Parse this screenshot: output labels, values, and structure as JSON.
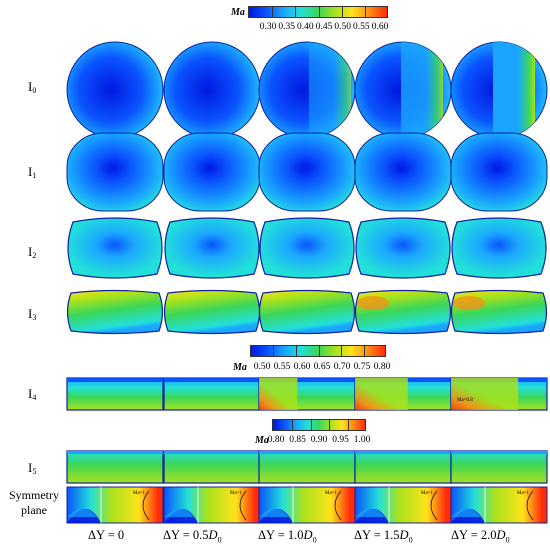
{
  "colorbars": [
    {
      "label": "Ma",
      "ticks": [
        "0.30",
        "0.35",
        "0.40",
        "0.45",
        "0.50",
        "0.55",
        "0.60"
      ]
    },
    {
      "label": "Ma",
      "ticks": [
        "0.50",
        "0.55",
        "0.60",
        "0.65",
        "0.70",
        "0.75",
        "0.80"
      ]
    },
    {
      "label": "Ma",
      "ticks": [
        "0.80",
        "0.85",
        "0.90",
        "0.95",
        "1.00"
      ]
    }
  ],
  "colormap": [
    "#0018e0",
    "#0a54ff",
    "#1aa6ff",
    "#22e0d8",
    "#3ad65a",
    "#a6e21c",
    "#ffe21a",
    "#ff8a14",
    "#ff2a0a"
  ],
  "rows": [
    {
      "base": "I",
      "sub": "0"
    },
    {
      "base": "I",
      "sub": "1"
    },
    {
      "base": "I",
      "sub": "2"
    },
    {
      "base": "I",
      "sub": "3"
    },
    {
      "base": "I",
      "sub": "4"
    },
    {
      "base": "I",
      "sub": "5"
    }
  ],
  "symmetry_label": [
    "Symmetry",
    "plane"
  ],
  "columns": [
    {
      "prefix": "ΔY = ",
      "value": "0",
      "suffix": ""
    },
    {
      "prefix": "ΔY = ",
      "value": "0.5",
      "suffix": "D",
      "sub": "0"
    },
    {
      "prefix": "ΔY = ",
      "value": "1.0",
      "suffix": "D",
      "sub": "0"
    },
    {
      "prefix": "ΔY = ",
      "value": "1.5",
      "suffix": "D",
      "sub": "0"
    },
    {
      "prefix": "ΔY = ",
      "value": "2.0",
      "suffix": "D",
      "sub": "0"
    }
  ],
  "annotations": {
    "i4_last": "Ma=0.8",
    "symmetry_mark": "Ma=1"
  }
}
